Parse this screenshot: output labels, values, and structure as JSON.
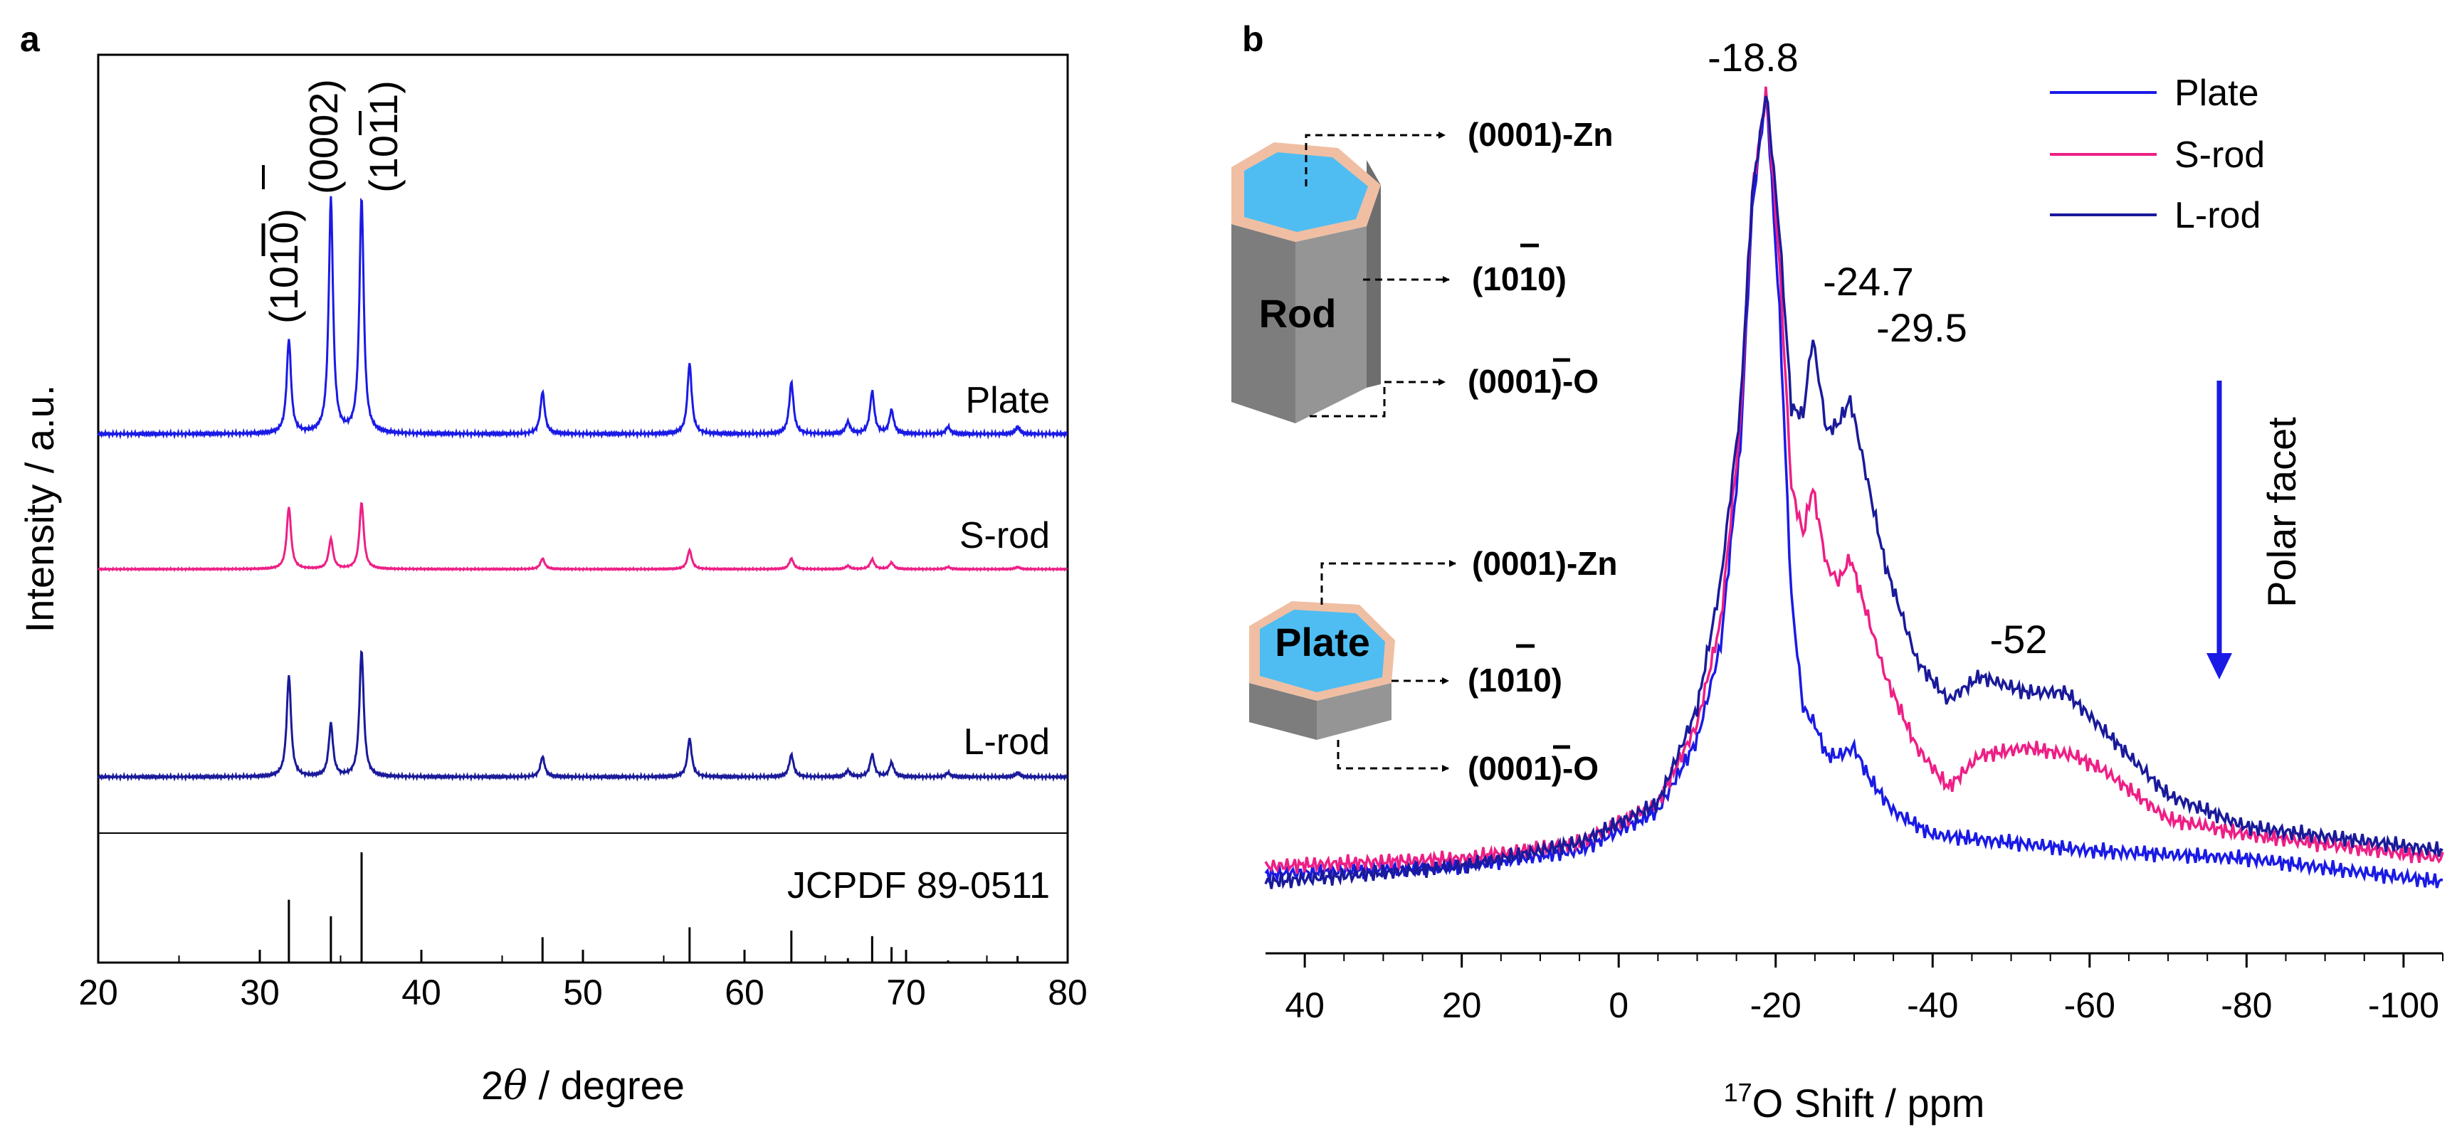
{
  "chart_data": [
    {
      "panel": "a",
      "type": "line",
      "xlabel_prefix": "2",
      "xlabel_symbol": "θ",
      "xlabel_suffix": " / degree",
      "ylabel": "Intensity / a.u.",
      "xlim": [
        20,
        80
      ],
      "xticks": [
        "20",
        "30",
        "40",
        "50",
        "60",
        "70",
        "80"
      ],
      "peak_positions": [
        31.8,
        34.4,
        36.3,
        47.5,
        56.6,
        62.9,
        66.4,
        67.9,
        69.1,
        72.6,
        76.9
      ],
      "series": [
        {
          "name": "Plate",
          "color": "#1a1ae6",
          "offset": 3,
          "intensities": [
            0.4,
            1.0,
            1.0,
            0.18,
            0.3,
            0.22,
            0.05,
            0.18,
            0.1,
            0.03,
            0.03
          ]
        },
        {
          "name": "S-rod",
          "color": "#ee1f86",
          "offset": 2,
          "intensities": [
            0.58,
            0.28,
            0.62,
            0.1,
            0.18,
            0.1,
            0.03,
            0.09,
            0.06,
            0.02,
            0.02
          ]
        },
        {
          "name": "L-rod",
          "color": "#1a1a9a",
          "offset": 1,
          "intensities": [
            0.5,
            0.26,
            0.62,
            0.1,
            0.19,
            0.11,
            0.03,
            0.11,
            0.07,
            0.02,
            0.02
          ]
        }
      ],
      "reference": {
        "name": "JCPDF 89-0511",
        "positions": [
          31.8,
          34.4,
          36.3,
          47.5,
          56.6,
          62.9,
          66.4,
          67.9,
          69.1,
          72.6,
          76.9
        ],
        "intensities": [
          0.57,
          0.42,
          1.0,
          0.23,
          0.32,
          0.29,
          0.04,
          0.24,
          0.14,
          0.02,
          0.06
        ]
      },
      "peak_annotations": [
        {
          "pos": 31.8,
          "miller": "(1010)"
        },
        {
          "pos": 34.4,
          "miller": "(0002)"
        },
        {
          "pos": 36.3,
          "miller": "(1011)"
        }
      ]
    },
    {
      "panel": "b",
      "type": "line",
      "xlabel_sup": "17",
      "xlabel": "O Shift / ppm",
      "xlim": [
        45,
        -105
      ],
      "xticks": [
        "40",
        "20",
        "0",
        "-20",
        "-40",
        "-60",
        "-80",
        "-100"
      ],
      "tick_values": [
        40,
        20,
        0,
        -20,
        -40,
        -60,
        -80,
        -100
      ],
      "legend": [
        "Plate",
        "S-rod",
        "L-rod"
      ],
      "series": [
        {
          "name": "Plate",
          "color": "#1a1ae6",
          "x": [
            45,
            20,
            5,
            -5,
            -10,
            -13,
            -15.5,
            -17,
            -18.8,
            -20.5,
            -22,
            -23.5,
            -25,
            -26.5,
            -28,
            -30,
            -32,
            -35,
            -40,
            -50,
            -60,
            -80,
            -105
          ],
          "y": [
            0.01,
            0.02,
            0.04,
            0.09,
            0.18,
            0.3,
            0.55,
            0.85,
            1.0,
            0.72,
            0.36,
            0.22,
            0.2,
            0.16,
            0.16,
            0.17,
            0.13,
            0.09,
            0.06,
            0.05,
            0.04,
            0.03,
            0.0
          ]
        },
        {
          "name": "S-rod",
          "color": "#ee1f86",
          "x": [
            45,
            20,
            5,
            -5,
            -10,
            -13,
            -15.5,
            -17,
            -18.8,
            -20.5,
            -22,
            -23.5,
            -24.7,
            -26.5,
            -28,
            -29.5,
            -31,
            -34,
            -38,
            -42,
            -46,
            -52,
            -58,
            -62,
            -70,
            -80,
            -105
          ],
          "y": [
            0.02,
            0.03,
            0.05,
            0.1,
            0.2,
            0.33,
            0.58,
            0.87,
            1.0,
            0.78,
            0.5,
            0.44,
            0.5,
            0.4,
            0.38,
            0.41,
            0.36,
            0.26,
            0.17,
            0.12,
            0.16,
            0.17,
            0.16,
            0.14,
            0.08,
            0.06,
            0.03
          ]
        },
        {
          "name": "L-rod",
          "color": "#1a1a9a",
          "x": [
            45,
            20,
            5,
            -5,
            -10,
            -13,
            -15.5,
            -17,
            -18.8,
            -20.5,
            -22,
            -23.5,
            -24.7,
            -26.5,
            -28,
            -29.5,
            -31,
            -34,
            -38,
            -42,
            -46,
            -52,
            -57,
            -62,
            -70,
            -80,
            -105
          ],
          "y": [
            0.0,
            0.02,
            0.05,
            0.1,
            0.22,
            0.38,
            0.6,
            0.87,
            1.0,
            0.82,
            0.6,
            0.59,
            0.69,
            0.57,
            0.58,
            0.61,
            0.54,
            0.4,
            0.28,
            0.23,
            0.26,
            0.24,
            0.24,
            0.19,
            0.11,
            0.07,
            0.04
          ]
        }
      ],
      "peak_labels": [
        "-18.8",
        "-24.7",
        "-29.5",
        "-52"
      ],
      "arrow_label": "Polar facet",
      "rod_label": "Rod",
      "plate_label": "Plate",
      "facets": {
        "zn": "(0001)-Zn",
        "side": "(1010)",
        "o": "(0001)-O"
      }
    }
  ]
}
